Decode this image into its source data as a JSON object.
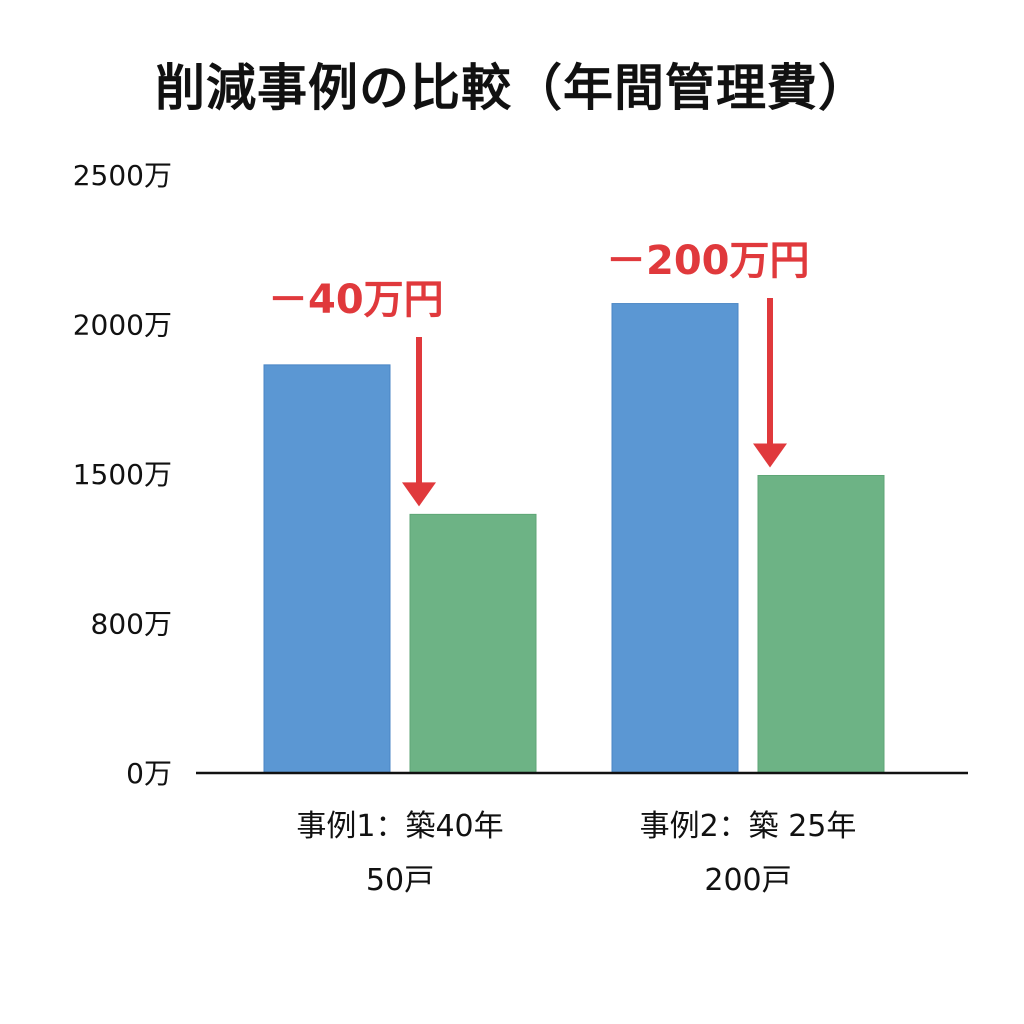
{
  "chart_data": {
    "type": "bar",
    "title": "削減事例の比較（年間管理費）",
    "yticks": [
      {
        "label": "0万",
        "value": 0
      },
      {
        "label": "800万",
        "value": 1
      },
      {
        "label": "1500万",
        "value": 2
      },
      {
        "label": "2000万",
        "value": 3
      },
      {
        "label": "2500万",
        "value": 4
      }
    ],
    "ylim": [
      0,
      4
    ],
    "grid": true,
    "categories": [
      {
        "line1": "事例1：築40年",
        "line2": "50戸"
      },
      {
        "line1": "事例2：築 25年",
        "line2": "200戸"
      }
    ],
    "series": [
      {
        "color": "#5b97d3",
        "values": [
          2.73,
          3.14
        ]
      },
      {
        "color": "#6db385",
        "values": [
          1.73,
          1.99
        ]
      }
    ],
    "annotations": [
      {
        "category": 0,
        "label": "－40万円"
      },
      {
        "category": 1,
        "label": "－200万円"
      }
    ],
    "annotation_color": "#e0393c"
  }
}
